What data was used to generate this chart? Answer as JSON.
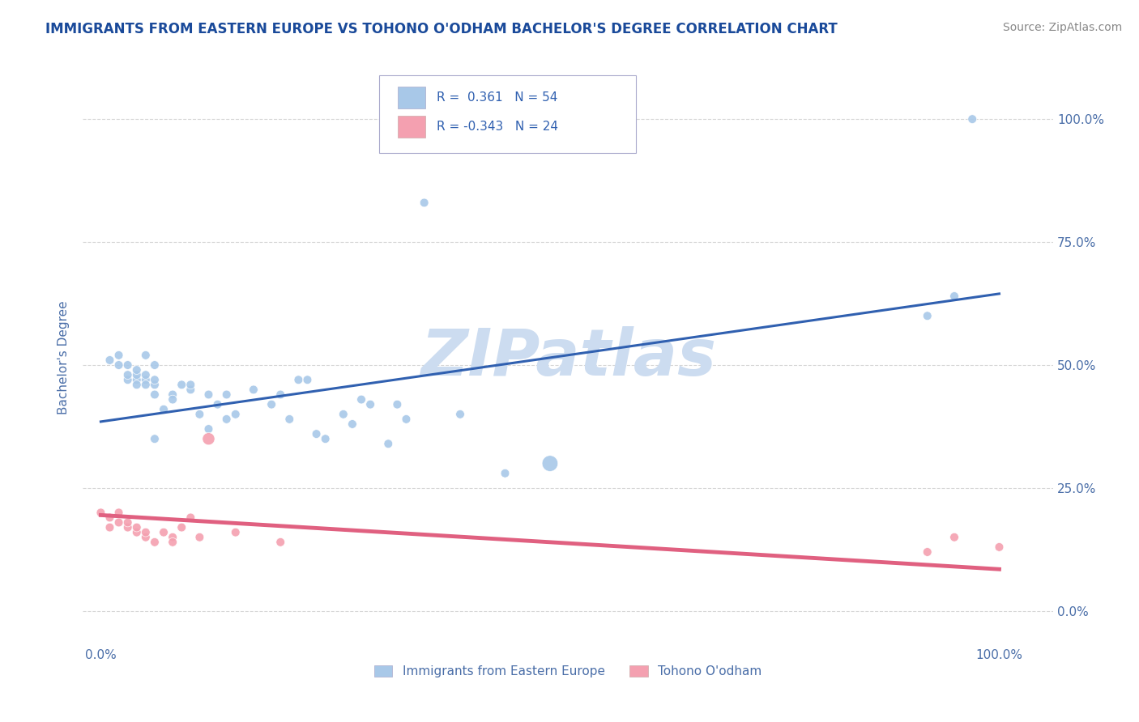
{
  "title": "IMMIGRANTS FROM EASTERN EUROPE VS TOHONO O'ODHAM BACHELOR'S DEGREE CORRELATION CHART",
  "source": "Source: ZipAtlas.com",
  "xlabel": "",
  "ylabel": "Bachelor's Degree",
  "right_ytick_labels": [
    "0.0%",
    "25.0%",
    "50.0%",
    "75.0%",
    "100.0%"
  ],
  "right_ytick_values": [
    0.0,
    0.25,
    0.5,
    0.75,
    1.0
  ],
  "xtick_labels": [
    "0.0%",
    "100.0%"
  ],
  "xtick_values": [
    0.0,
    1.0
  ],
  "xlim": [
    -0.02,
    1.06
  ],
  "ylim": [
    -0.07,
    1.1
  ],
  "blue_R": "0.361",
  "blue_N": "54",
  "pink_R": "-0.343",
  "pink_N": "24",
  "blue_color": "#a8c8e8",
  "pink_color": "#f4a0b0",
  "blue_line_color": "#3060b0",
  "pink_line_color": "#e06080",
  "watermark": "ZIPatlas",
  "watermark_color": "#ccdcf0",
  "legend_blue_label": "Immigrants from Eastern Europe",
  "legend_pink_label": "Tohono O'odham",
  "blue_scatter_x": [
    0.01,
    0.02,
    0.02,
    0.03,
    0.03,
    0.03,
    0.04,
    0.04,
    0.04,
    0.04,
    0.05,
    0.05,
    0.05,
    0.05,
    0.06,
    0.06,
    0.06,
    0.06,
    0.06,
    0.07,
    0.08,
    0.08,
    0.09,
    0.1,
    0.1,
    0.11,
    0.12,
    0.12,
    0.13,
    0.14,
    0.14,
    0.15,
    0.17,
    0.19,
    0.2,
    0.21,
    0.22,
    0.23,
    0.24,
    0.25,
    0.27,
    0.28,
    0.29,
    0.3,
    0.32,
    0.33,
    0.34,
    0.36,
    0.4,
    0.45,
    0.5,
    0.92,
    0.95,
    0.97
  ],
  "blue_scatter_y": [
    0.51,
    0.52,
    0.5,
    0.47,
    0.48,
    0.5,
    0.47,
    0.48,
    0.46,
    0.49,
    0.47,
    0.46,
    0.48,
    0.52,
    0.44,
    0.46,
    0.47,
    0.5,
    0.35,
    0.41,
    0.44,
    0.43,
    0.46,
    0.45,
    0.46,
    0.4,
    0.37,
    0.44,
    0.42,
    0.44,
    0.39,
    0.4,
    0.45,
    0.42,
    0.44,
    0.39,
    0.47,
    0.47,
    0.36,
    0.35,
    0.4,
    0.38,
    0.43,
    0.42,
    0.34,
    0.42,
    0.39,
    0.83,
    0.4,
    0.28,
    0.3,
    0.6,
    0.64,
    1.0
  ],
  "pink_scatter_x": [
    0.0,
    0.01,
    0.01,
    0.02,
    0.02,
    0.03,
    0.03,
    0.04,
    0.04,
    0.05,
    0.05,
    0.06,
    0.07,
    0.08,
    0.08,
    0.09,
    0.1,
    0.11,
    0.12,
    0.15,
    0.2,
    0.92,
    0.95,
    1.0
  ],
  "pink_scatter_y": [
    0.2,
    0.17,
    0.19,
    0.18,
    0.2,
    0.17,
    0.18,
    0.16,
    0.17,
    0.15,
    0.16,
    0.14,
    0.16,
    0.15,
    0.14,
    0.17,
    0.19,
    0.15,
    0.35,
    0.16,
    0.14,
    0.12,
    0.15,
    0.13
  ],
  "blue_dot_sizes": [
    60,
    60,
    60,
    60,
    60,
    60,
    60,
    60,
    60,
    60,
    60,
    60,
    60,
    60,
    60,
    60,
    60,
    60,
    60,
    60,
    60,
    60,
    60,
    60,
    60,
    60,
    60,
    60,
    60,
    60,
    60,
    60,
    60,
    60,
    60,
    60,
    60,
    60,
    60,
    60,
    60,
    60,
    60,
    60,
    60,
    60,
    60,
    60,
    60,
    60,
    200,
    60,
    60,
    60
  ],
  "pink_dot_sizes": [
    60,
    60,
    60,
    60,
    60,
    60,
    60,
    60,
    60,
    60,
    60,
    60,
    60,
    60,
    60,
    60,
    60,
    60,
    120,
    60,
    60,
    60,
    60,
    60
  ],
  "blue_trend_x": [
    0.0,
    1.0
  ],
  "blue_trend_y": [
    0.385,
    0.645
  ],
  "pink_trend_x": [
    0.0,
    1.0
  ],
  "pink_trend_y": [
    0.195,
    0.085
  ],
  "grid_color": "#cccccc",
  "bg_color": "#ffffff",
  "title_color": "#1a4a9a",
  "axis_label_color": "#4a6ea8",
  "tick_label_color": "#4a6ea8",
  "legend_text_color": "#333333",
  "legend_N_color": "#3060b0",
  "title_fontsize": 12,
  "source_fontsize": 10
}
